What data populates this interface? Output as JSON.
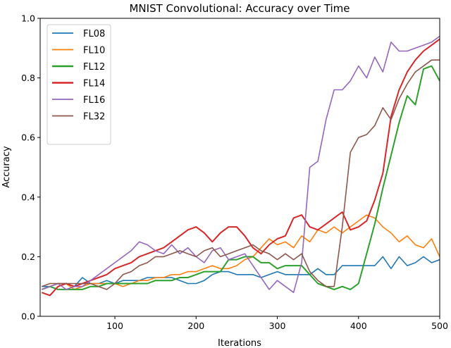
{
  "chart_data": {
    "type": "line",
    "title": "MNIST Convolutional: Accuracy over Time",
    "xlabel": "Iterations",
    "ylabel": "Accuracy",
    "xlim": [
      8,
      500
    ],
    "ylim": [
      0.0,
      1.0
    ],
    "xticks": [
      100,
      200,
      300,
      400,
      500
    ],
    "yticks": [
      0.0,
      0.2,
      0.4,
      0.6,
      0.8,
      1.0
    ],
    "ytick_labels": [
      "0.0",
      "0.2",
      "0.4",
      "0.6",
      "0.8",
      "1.0"
    ],
    "grid": false,
    "legend_position": "upper left",
    "x": [
      10,
      20,
      30,
      40,
      50,
      60,
      70,
      80,
      90,
      100,
      110,
      120,
      130,
      140,
      150,
      160,
      170,
      180,
      190,
      200,
      210,
      220,
      230,
      240,
      250,
      260,
      270,
      280,
      290,
      300,
      310,
      320,
      330,
      340,
      350,
      360,
      370,
      380,
      390,
      400,
      410,
      420,
      430,
      440,
      450,
      460,
      470,
      480,
      490,
      500
    ],
    "series": [
      {
        "name": "FL08",
        "color": "#1f77b4",
        "values": [
          0.1,
          0.1,
          0.11,
          0.11,
          0.1,
          0.13,
          0.11,
          0.11,
          0.12,
          0.11,
          0.12,
          0.12,
          0.12,
          0.13,
          0.13,
          0.13,
          0.13,
          0.12,
          0.11,
          0.11,
          0.12,
          0.14,
          0.15,
          0.15,
          0.14,
          0.14,
          0.14,
          0.13,
          0.14,
          0.15,
          0.14,
          0.14,
          0.14,
          0.14,
          0.16,
          0.14,
          0.14,
          0.17,
          0.17,
          0.17,
          0.17,
          0.17,
          0.2,
          0.16,
          0.2,
          0.17,
          0.18,
          0.2,
          0.18,
          0.19
        ]
      },
      {
        "name": "FL10",
        "color": "#ff7f0e",
        "values": [
          0.09,
          0.1,
          0.11,
          0.11,
          0.09,
          0.1,
          0.11,
          0.11,
          0.11,
          0.11,
          0.1,
          0.11,
          0.12,
          0.12,
          0.13,
          0.13,
          0.14,
          0.14,
          0.15,
          0.15,
          0.16,
          0.17,
          0.16,
          0.16,
          0.17,
          0.19,
          0.2,
          0.23,
          0.26,
          0.24,
          0.25,
          0.23,
          0.27,
          0.25,
          0.29,
          0.28,
          0.3,
          0.28,
          0.3,
          0.32,
          0.34,
          0.33,
          0.3,
          0.28,
          0.25,
          0.27,
          0.24,
          0.23,
          0.26,
          0.2
        ]
      },
      {
        "name": "FL12",
        "color": "#2ca02c",
        "values": [
          0.09,
          0.1,
          0.09,
          0.09,
          0.09,
          0.09,
          0.1,
          0.1,
          0.11,
          0.11,
          0.11,
          0.11,
          0.11,
          0.11,
          0.12,
          0.12,
          0.12,
          0.13,
          0.13,
          0.14,
          0.15,
          0.15,
          0.15,
          0.19,
          0.19,
          0.2,
          0.2,
          0.18,
          0.18,
          0.16,
          0.17,
          0.17,
          0.17,
          0.14,
          0.11,
          0.1,
          0.09,
          0.1,
          0.09,
          0.11,
          0.21,
          0.31,
          0.43,
          0.54,
          0.65,
          0.74,
          0.71,
          0.83,
          0.84,
          0.79
        ]
      },
      {
        "name": "FL14",
        "color": "#d62728",
        "values": [
          0.08,
          0.07,
          0.1,
          0.11,
          0.1,
          0.11,
          0.12,
          0.13,
          0.14,
          0.16,
          0.17,
          0.18,
          0.2,
          0.21,
          0.22,
          0.23,
          0.25,
          0.27,
          0.29,
          0.3,
          0.28,
          0.25,
          0.28,
          0.3,
          0.3,
          0.27,
          0.23,
          0.21,
          0.24,
          0.26,
          0.27,
          0.33,
          0.34,
          0.3,
          0.29,
          0.31,
          0.33,
          0.35,
          0.29,
          0.3,
          0.32,
          0.39,
          0.48,
          0.67,
          0.76,
          0.82,
          0.86,
          0.89,
          0.91,
          0.93
        ]
      },
      {
        "name": "FL16",
        "color": "#9467bd",
        "values": [
          0.09,
          0.1,
          0.11,
          0.09,
          0.1,
          0.1,
          0.12,
          0.14,
          0.16,
          0.18,
          0.2,
          0.22,
          0.25,
          0.24,
          0.22,
          0.21,
          0.24,
          0.21,
          0.23,
          0.2,
          0.18,
          0.22,
          0.23,
          0.19,
          0.2,
          0.21,
          0.17,
          0.13,
          0.09,
          0.12,
          0.1,
          0.08,
          0.18,
          0.5,
          0.52,
          0.66,
          0.76,
          0.76,
          0.79,
          0.84,
          0.8,
          0.87,
          0.82,
          0.92,
          0.89,
          0.89,
          0.9,
          0.91,
          0.92,
          0.94
        ]
      },
      {
        "name": "FL32",
        "color": "#8c564b",
        "values": [
          0.1,
          0.11,
          0.11,
          0.11,
          0.11,
          0.11,
          0.11,
          0.1,
          0.09,
          0.11,
          0.14,
          0.15,
          0.17,
          0.18,
          0.2,
          0.2,
          0.21,
          0.22,
          0.21,
          0.2,
          0.22,
          0.23,
          0.2,
          0.21,
          0.22,
          0.23,
          0.24,
          0.22,
          0.21,
          0.19,
          0.21,
          0.19,
          0.21,
          0.15,
          0.12,
          0.1,
          0.1,
          0.3,
          0.55,
          0.6,
          0.61,
          0.64,
          0.7,
          0.66,
          0.73,
          0.78,
          0.82,
          0.84,
          0.86,
          0.86
        ]
      }
    ]
  }
}
